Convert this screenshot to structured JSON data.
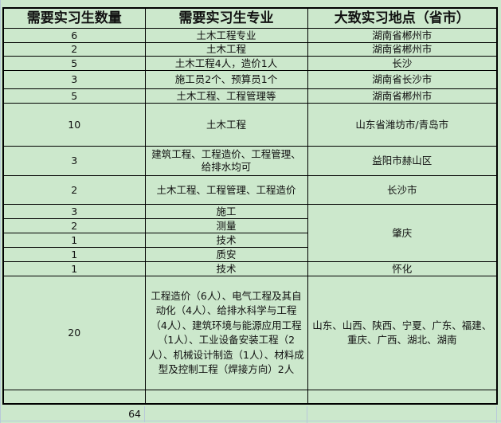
{
  "header": [
    "需要实习生数量",
    "需要实习生专业",
    "大致实习地点（省市）"
  ],
  "rows": [
    {
      "count": "6",
      "major": "土木工程专业",
      "location": "湖南省郴州市"
    },
    {
      "count": "2",
      "major": "土木工程",
      "location": "湖南省郴州市"
    },
    {
      "count": "5",
      "major": "土木工程4人，造价1人",
      "location": "长沙"
    },
    {
      "count": "3",
      "major": "施工员2个、预算员1个",
      "location": "湖南省长沙市"
    },
    {
      "count": "5",
      "major": "土木工程、工程管理等",
      "location": "湖南省郴州市"
    },
    {
      "count": "10",
      "major": "土木工程",
      "location": "山东省潍坊市/青岛市"
    },
    {
      "count": "3",
      "major": "建筑工程、工程造价、工程管理、给排水均可",
      "location": "益阳市赫山区"
    },
    {
      "count": "2",
      "major": "土木工程、工程管理、工程造价",
      "location": "长沙市"
    },
    {
      "count": "3",
      "major": "施工",
      "location": "肇庆"
    },
    {
      "count": "2",
      "major": "测量"
    },
    {
      "count": "1",
      "major": "技术"
    },
    {
      "count": "1",
      "major": "质安"
    },
    {
      "count": "1",
      "major": "技术",
      "location": "怀化"
    },
    {
      "count": "20",
      "major": "工程造价（6人）、电气工程及其自动化（4人）、给排水科学与工程（4人）、建筑环境与能源应用工程（1人）、工业设备安装工程（2人）、机械设计制造（1人）、材料成型及控制工程（焊接方向）2人",
      "location": "山东、山西、陕西、宁夏、广东、福建、重庆、广西、湖北、湖南"
    }
  ],
  "total": "64",
  "colors": {
    "background": "#cce8cc",
    "border": "#000000"
  }
}
